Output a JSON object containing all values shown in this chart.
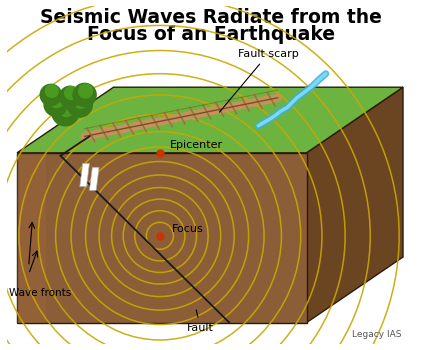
{
  "title_line1": "Seismic Waves Radiate from the",
  "title_line2": "Focus of an Earthquake",
  "title_fontsize": 13.5,
  "title_fontweight": "bold",
  "background_color": "#ffffff",
  "label_fault_scarp": "Fault scarp",
  "label_epicenter": "Epicenter",
  "label_focus": "Focus",
  "label_wave_fronts": "Wave fronts",
  "label_fault": "Fault",
  "label_legacy": "Legacy IAS",
  "ground_color_top": "#6db33f",
  "ground_color_front": "#8c5e38",
  "ground_color_right": "#6b4422",
  "ground_color_front_light": "#a06a3a",
  "wave_color": "#c8a800",
  "fault_line_color": "#1a1a1a",
  "dot_color": "#cc3300",
  "river_color": "#3ab0e0",
  "fault_scarp_color": "#c89060",
  "vegetation_dark": "#3a7a18",
  "vegetation_light": "#4a9a22"
}
